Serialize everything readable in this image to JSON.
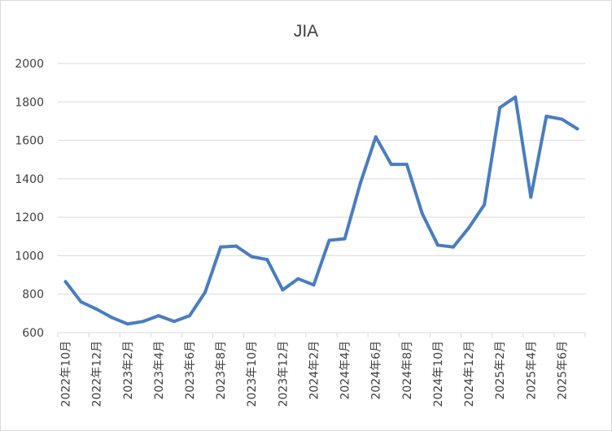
{
  "chart_data": {
    "type": "line",
    "title": "JIA",
    "xlabel": "",
    "ylabel": "",
    "ylim": [
      600,
      2000
    ],
    "y_ticks": [
      600,
      800,
      1000,
      1200,
      1400,
      1600,
      1800,
      2000
    ],
    "grid": true,
    "legend": "none",
    "line_color": "#4a7dbf",
    "x": [
      "2022年10月",
      "2022年11月",
      "2022年12月",
      "2023年1月",
      "2023年2月",
      "2023年3月",
      "2023年4月",
      "2023年5月",
      "2023年6月",
      "2023年7月",
      "2023年8月",
      "2023年9月",
      "2023年10月",
      "2023年11月",
      "2023年12月",
      "2024年1月",
      "2024年2月",
      "2024年3月",
      "2024年4月",
      "2024年5月",
      "2024年6月",
      "2024年7月",
      "2024年8月",
      "2024年9月",
      "2024年10月",
      "2024年11月",
      "2024年12月",
      "2025年1月",
      "2025年2月",
      "2025年3月",
      "2025年4月",
      "2025年5月",
      "2025年6月",
      "2025年7月"
    ],
    "x_tick_labels": [
      "2022年10月",
      "2022年12月",
      "2023年2月",
      "2023年4月",
      "2023年6月",
      "2023年8月",
      "2023年10月",
      "2023年12月",
      "2024年2月",
      "2024年4月",
      "2024年6月",
      "2024年8月",
      "2024年10月",
      "2024年12月",
      "2025年2月",
      "2025年4月",
      "2025年6月"
    ],
    "series": [
      {
        "values": [
          865,
          760,
          722,
          678,
          645,
          658,
          688,
          658,
          688,
          810,
          1045,
          1050,
          995,
          980,
          822,
          880,
          848,
          1080,
          1088,
          1375,
          1618,
          1475,
          1475,
          1218,
          1055,
          1045,
          1145,
          1265,
          1770,
          1825,
          1305,
          1725,
          1710,
          1660
        ]
      }
    ]
  }
}
